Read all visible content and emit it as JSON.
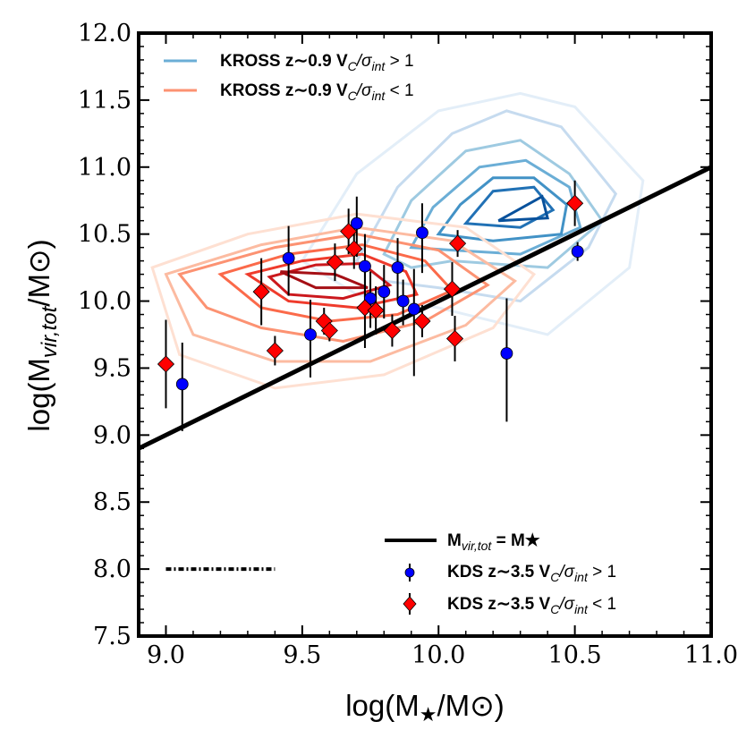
{
  "chart_data": {
    "type": "scatter",
    "xlabel": "log(M★/M⊙)",
    "ylabel": "log(Mvir,tot/M⊙)",
    "xlim": [
      8.9,
      11.0
    ],
    "ylim": [
      7.5,
      12.0
    ],
    "x_ticks": [
      "9.0",
      "9.5",
      "10.0",
      "10.5",
      "11.0"
    ],
    "y_ticks": [
      "7.5",
      "8.0",
      "8.5",
      "9.0",
      "9.5",
      "10.0",
      "10.5",
      "11.0",
      "11.5",
      "12.0"
    ],
    "one_to_one_line": {
      "name": "Mvir,tot = M★",
      "x": [
        8.9,
        11.0
      ],
      "y": [
        8.9,
        11.0
      ]
    },
    "error_bar_reference": {
      "x": [
        9.0,
        9.4
      ],
      "y": 8.0
    },
    "contour_series": [
      {
        "name": "KROSS z∼0.9 VC/σint > 1",
        "legend_color": "#6baed6",
        "levels": [
          {
            "color": "#e3eef8",
            "points": [
              [
                9.5,
                10.3
              ],
              [
                9.7,
                10.95
              ],
              [
                10.0,
                11.42
              ],
              [
                10.3,
                11.55
              ],
              [
                10.5,
                11.45
              ],
              [
                10.75,
                10.9
              ],
              [
                10.7,
                10.25
              ],
              [
                10.4,
                9.75
              ],
              [
                10.0,
                9.95
              ],
              [
                9.7,
                10.05
              ]
            ]
          },
          {
            "color": "#c6dbef",
            "points": [
              [
                9.7,
                10.3
              ],
              [
                9.85,
                10.85
              ],
              [
                10.05,
                11.25
              ],
              [
                10.25,
                11.42
              ],
              [
                10.45,
                11.3
              ],
              [
                10.65,
                10.8
              ],
              [
                10.55,
                10.4
              ],
              [
                10.3,
                10.0
              ],
              [
                10.0,
                10.1
              ],
              [
                9.8,
                10.15
              ]
            ]
          },
          {
            "color": "#9ecae1",
            "points": [
              [
                9.8,
                10.35
              ],
              [
                9.9,
                10.75
              ],
              [
                10.1,
                11.12
              ],
              [
                10.3,
                11.2
              ],
              [
                10.48,
                10.95
              ],
              [
                10.6,
                10.6
              ],
              [
                10.4,
                10.25
              ],
              [
                10.05,
                10.3
              ],
              [
                9.9,
                10.25
              ]
            ]
          },
          {
            "color": "#6baed6",
            "points": [
              [
                9.9,
                10.4
              ],
              [
                9.98,
                10.7
              ],
              [
                10.15,
                11.0
              ],
              [
                10.32,
                11.05
              ],
              [
                10.48,
                10.85
              ],
              [
                10.52,
                10.55
              ],
              [
                10.3,
                10.35
              ],
              [
                10.05,
                10.38
              ]
            ]
          },
          {
            "color": "#4292c6",
            "points": [
              [
                10.0,
                10.5
              ],
              [
                10.08,
                10.72
              ],
              [
                10.2,
                10.92
              ],
              [
                10.35,
                10.92
              ],
              [
                10.47,
                10.72
              ],
              [
                10.45,
                10.5
              ],
              [
                10.2,
                10.45
              ]
            ]
          },
          {
            "color": "#2171b5",
            "points": [
              [
                10.1,
                10.58
              ],
              [
                10.2,
                10.82
              ],
              [
                10.35,
                10.85
              ],
              [
                10.42,
                10.68
              ],
              [
                10.3,
                10.55
              ]
            ]
          },
          {
            "color": "#08519c",
            "points": [
              [
                10.22,
                10.6
              ],
              [
                10.38,
                10.78
              ],
              [
                10.4,
                10.62
              ]
            ]
          }
        ]
      },
      {
        "name": "KROSS z∼0.9 VC/σint < 1",
        "legend_color": "#fc9272",
        "levels": [
          {
            "color": "#fee0d2",
            "points": [
              [
                8.95,
                10.25
              ],
              [
                9.3,
                10.5
              ],
              [
                9.7,
                10.65
              ],
              [
                10.1,
                10.55
              ],
              [
                10.35,
                10.2
              ],
              [
                10.2,
                9.8
              ],
              [
                9.8,
                9.45
              ],
              [
                9.4,
                9.35
              ],
              [
                9.05,
                9.6
              ]
            ]
          },
          {
            "color": "#fcbba1",
            "points": [
              [
                9.0,
                10.2
              ],
              [
                9.35,
                10.42
              ],
              [
                9.7,
                10.55
              ],
              [
                10.05,
                10.45
              ],
              [
                10.28,
                10.15
              ],
              [
                10.1,
                9.82
              ],
              [
                9.75,
                9.55
              ],
              [
                9.4,
                9.55
              ],
              [
                9.1,
                9.75
              ]
            ]
          },
          {
            "color": "#fc9272",
            "points": [
              [
                9.05,
                10.2
              ],
              [
                9.4,
                10.4
              ],
              [
                9.7,
                10.5
              ],
              [
                10.0,
                10.38
              ],
              [
                10.18,
                10.12
              ],
              [
                9.95,
                9.85
              ],
              [
                9.65,
                9.7
              ],
              [
                9.35,
                9.8
              ],
              [
                9.15,
                9.95
              ]
            ]
          },
          {
            "color": "#fb6a4a",
            "points": [
              [
                9.2,
                10.2
              ],
              [
                9.45,
                10.35
              ],
              [
                9.72,
                10.42
              ],
              [
                9.95,
                10.3
              ],
              [
                10.05,
                10.08
              ],
              [
                9.85,
                9.9
              ],
              [
                9.6,
                9.85
              ],
              [
                9.35,
                9.95
              ]
            ]
          },
          {
            "color": "#ef3b2c",
            "points": [
              [
                9.3,
                10.2
              ],
              [
                9.5,
                10.3
              ],
              [
                9.72,
                10.35
              ],
              [
                9.88,
                10.22
              ],
              [
                9.92,
                10.05
              ],
              [
                9.7,
                9.95
              ],
              [
                9.45,
                10.0
              ]
            ]
          },
          {
            "color": "#cb181d",
            "points": [
              [
                9.38,
                10.18
              ],
              [
                9.55,
                10.27
              ],
              [
                9.72,
                10.28
              ],
              [
                9.82,
                10.12
              ],
              [
                9.65,
                10.02
              ],
              [
                9.45,
                10.05
              ]
            ]
          },
          {
            "color": "#a50f15",
            "points": [
              [
                9.42,
                10.22
              ],
              [
                9.62,
                10.2
              ],
              [
                9.74,
                10.1
              ],
              [
                9.55,
                10.1
              ]
            ]
          }
        ]
      }
    ],
    "scatter_series": [
      {
        "name": "KDS z∼3.5 VC/σint > 1",
        "marker": "circle",
        "color": "#0000ff",
        "points": [
          {
            "x": 9.06,
            "y": 9.38,
            "err": [
              0.35,
              0.31
            ]
          },
          {
            "x": 9.45,
            "y": 10.32,
            "err": [
              0.28,
              0.24
            ]
          },
          {
            "x": 9.53,
            "y": 9.75,
            "err": [
              0.32,
              0.26
            ]
          },
          {
            "x": 9.7,
            "y": 10.58,
            "err": [
              0.25,
              0.2
            ]
          },
          {
            "x": 9.73,
            "y": 10.26,
            "err": [
              0.3,
              0.24
            ]
          },
          {
            "x": 9.75,
            "y": 10.02,
            "err": [
              0.22,
              0.2
            ]
          },
          {
            "x": 9.8,
            "y": 10.07,
            "err": [
              0.2,
              0.2
            ]
          },
          {
            "x": 9.85,
            "y": 10.25,
            "err": [
              0.25,
              0.22
            ]
          },
          {
            "x": 9.87,
            "y": 10.0,
            "err": [
              0.18,
              0.16
            ]
          },
          {
            "x": 9.91,
            "y": 9.94,
            "err": [
              0.5,
              0.3
            ]
          },
          {
            "x": 9.94,
            "y": 10.51,
            "err": [
              0.3,
              0.22
            ]
          },
          {
            "x": 10.25,
            "y": 9.61,
            "err": [
              0.51,
              0.41
            ]
          },
          {
            "x": 10.51,
            "y": 10.37,
            "err": [
              0.07,
              0.07
            ]
          }
        ]
      },
      {
        "name": "KDS z∼3.5 VC/σint < 1",
        "marker": "diamond",
        "color": "#ff0000",
        "points": [
          {
            "x": 9.0,
            "y": 9.53,
            "err": [
              0.33,
              0.33
            ]
          },
          {
            "x": 9.35,
            "y": 10.07,
            "err": [
              0.25,
              0.25
            ]
          },
          {
            "x": 9.4,
            "y": 9.63,
            "err": [
              0.11,
              0.11
            ]
          },
          {
            "x": 9.58,
            "y": 9.85,
            "err": [
              0.1,
              0.1
            ]
          },
          {
            "x": 9.6,
            "y": 9.78,
            "err": [
              0.08,
              0.08
            ]
          },
          {
            "x": 9.62,
            "y": 10.29,
            "err": [
              0.14,
              0.14
            ]
          },
          {
            "x": 9.67,
            "y": 10.52,
            "err": [
              0.17,
              0.17
            ]
          },
          {
            "x": 9.69,
            "y": 10.39,
            "err": [
              0.15,
              0.15
            ]
          },
          {
            "x": 9.73,
            "y": 9.95,
            "err": [
              0.3,
              0.3
            ]
          },
          {
            "x": 9.77,
            "y": 9.93,
            "err": [
              0.18,
              0.18
            ]
          },
          {
            "x": 9.83,
            "y": 9.78,
            "err": [
              0.12,
              0.12
            ]
          },
          {
            "x": 9.94,
            "y": 9.85,
            "err": [
              0.12,
              0.12
            ]
          },
          {
            "x": 10.05,
            "y": 10.09,
            "err": [
              0.2,
              0.2
            ]
          },
          {
            "x": 10.07,
            "y": 10.43,
            "err": [
              0.1,
              0.1
            ]
          },
          {
            "x": 10.06,
            "y": 9.72,
            "err": [
              0.17,
              0.17
            ]
          },
          {
            "x": 10.5,
            "y": 10.73,
            "err": [
              0.17,
              0.17
            ]
          }
        ]
      }
    ]
  }
}
